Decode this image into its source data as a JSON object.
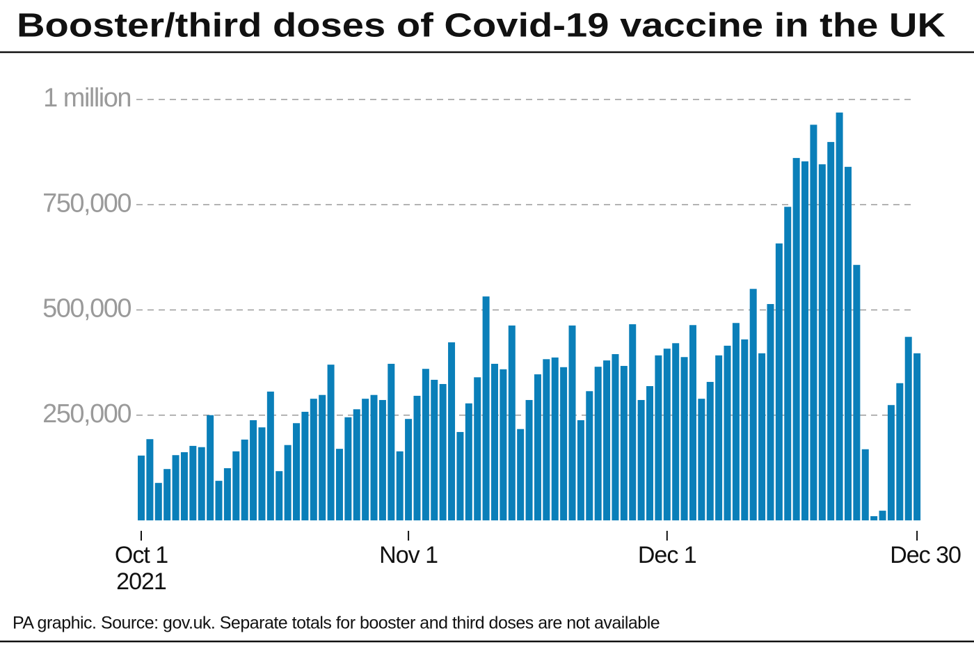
{
  "chart_data": {
    "type": "bar",
    "title": "Booster/third doses of Covid-19 vaccine in the UK",
    "footnote": "PA graphic. Source: gov.uk. Separate totals for booster and third doses are not available",
    "categories": [
      "Oct 1",
      null,
      null,
      null,
      null,
      null,
      null,
      null,
      null,
      null,
      null,
      null,
      null,
      null,
      null,
      null,
      null,
      null,
      null,
      null,
      null,
      null,
      null,
      null,
      null,
      null,
      null,
      null,
      null,
      null,
      null,
      "Nov 1",
      null,
      null,
      null,
      null,
      null,
      null,
      null,
      null,
      null,
      null,
      null,
      null,
      null,
      null,
      null,
      null,
      null,
      null,
      null,
      null,
      null,
      null,
      null,
      null,
      null,
      null,
      null,
      null,
      null,
      "Dec 1",
      null,
      null,
      null,
      null,
      null,
      null,
      null,
      null,
      null,
      null,
      null,
      null,
      null,
      null,
      null,
      null,
      null,
      null,
      null,
      null,
      null,
      null,
      null,
      null,
      null,
      null,
      null,
      null,
      "Dec 30"
    ],
    "year_label": "2021",
    "values": [
      154000,
      193000,
      89000,
      122000,
      155000,
      162000,
      177000,
      174000,
      250000,
      94000,
      124000,
      164000,
      192000,
      238000,
      221000,
      306000,
      117000,
      179000,
      231000,
      258000,
      289000,
      298000,
      370000,
      170000,
      245000,
      264000,
      289000,
      298000,
      286000,
      372000,
      164000,
      241000,
      296000,
      360000,
      334000,
      324000,
      423000,
      210000,
      278000,
      340000,
      532000,
      372000,
      359000,
      463000,
      217000,
      286000,
      347000,
      383000,
      387000,
      364000,
      463000,
      238000,
      307000,
      365000,
      380000,
      395000,
      367000,
      466000,
      286000,
      319000,
      392000,
      408000,
      421000,
      388000,
      464000,
      289000,
      329000,
      392000,
      415000,
      469000,
      430000,
      550000,
      397000,
      514000,
      658000,
      745000,
      861000,
      853000,
      940000,
      846000,
      899000,
      969000,
      840000,
      607000,
      169000,
      10000,
      23000,
      274000,
      326000,
      436000,
      397000
    ],
    "color": "#0a7fb9",
    "ylim": [
      0,
      1000000
    ],
    "yticks": [
      {
        "value": 250000,
        "label": "250,000"
      },
      {
        "value": 500000,
        "label": "500,000"
      },
      {
        "value": 750000,
        "label": "750,000"
      },
      {
        "value": 1000000,
        "label": "1 million"
      }
    ],
    "grid": true
  }
}
